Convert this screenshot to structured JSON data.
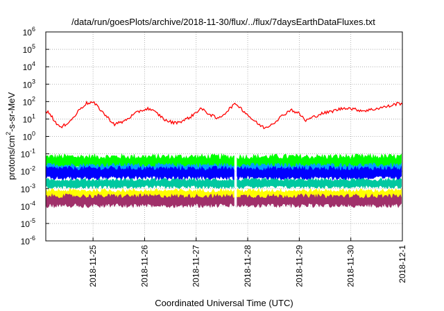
{
  "chart_data": {
    "type": "line",
    "title": "/data/run/goesPlots/archive/2018-11-30/flux/../flux/7daysEarthDataFluxes.txt",
    "xlabel": "Coordinated Universal Time (UTC)",
    "ylabel": {
      "prefix": "protons/cm",
      "sup": "2",
      "suffix": "-s-sr-MeV"
    },
    "yscale": "log",
    "ylim": [
      1e-06,
      1000000.0
    ],
    "xlim": [
      "2018-11-24 02:00",
      "2018-12-01 00:00"
    ],
    "grid": true,
    "ytick_exponents": [
      -6,
      -5,
      -4,
      -3,
      -2,
      -1,
      0,
      1,
      2,
      3,
      4,
      5,
      6
    ],
    "ytick_base": "10",
    "xticks": [
      "2018-11-25",
      "2018-11-26",
      "2018-11-27",
      "2018-11-28",
      "2018-11-29",
      "2018-11-30",
      "2018-12-1"
    ],
    "data_gap": [
      "2018-11-27 18:00",
      "2018-11-27 19:00"
    ],
    "series": [
      {
        "color": "#ff0000",
        "kind": "line",
        "points": [
          [
            "2018-11-24 02:00",
            30
          ],
          [
            "2018-11-24 04:00",
            20
          ],
          [
            "2018-11-24 06:00",
            8
          ],
          [
            "2018-11-24 09:00",
            3
          ],
          [
            "2018-11-24 12:00",
            6
          ],
          [
            "2018-11-24 15:00",
            12
          ],
          [
            "2018-11-24 18:00",
            40
          ],
          [
            "2018-11-24 21:00",
            80
          ],
          [
            "2018-11-25 00:00",
            90
          ],
          [
            "2018-11-25 03:00",
            40
          ],
          [
            "2018-11-25 06:00",
            15
          ],
          [
            "2018-11-25 10:00",
            5
          ],
          [
            "2018-11-25 14:00",
            7
          ],
          [
            "2018-11-25 18:00",
            15
          ],
          [
            "2018-11-25 22:00",
            30
          ],
          [
            "2018-11-26 02:00",
            40
          ],
          [
            "2018-11-26 06:00",
            20
          ],
          [
            "2018-11-26 10:00",
            8
          ],
          [
            "2018-11-26 14:00",
            6
          ],
          [
            "2018-11-26 18:00",
            8
          ],
          [
            "2018-11-26 22:00",
            15
          ],
          [
            "2018-11-27 02:00",
            40
          ],
          [
            "2018-11-27 06:00",
            20
          ],
          [
            "2018-11-27 10:00",
            10
          ],
          [
            "2018-11-27 14:00",
            25
          ],
          [
            "2018-11-27 17:00",
            60
          ],
          [
            "2018-11-27 19:00",
            70
          ],
          [
            "2018-11-27 22:00",
            30
          ],
          [
            "2018-11-28 02:00",
            10
          ],
          [
            "2018-11-28 05:00",
            5
          ],
          [
            "2018-11-28 08:00",
            3
          ],
          [
            "2018-11-28 12:00",
            6
          ],
          [
            "2018-11-28 16:00",
            15
          ],
          [
            "2018-11-28 20:00",
            35
          ],
          [
            "2018-11-29 00:00",
            20
          ],
          [
            "2018-11-29 03:00",
            8
          ],
          [
            "2018-11-29 06:00",
            12
          ],
          [
            "2018-11-29 10:00",
            20
          ],
          [
            "2018-11-29 14:00",
            25
          ],
          [
            "2018-11-29 18:00",
            35
          ],
          [
            "2018-11-29 22:00",
            45
          ],
          [
            "2018-11-30 02:00",
            35
          ],
          [
            "2018-11-30 06:00",
            30
          ],
          [
            "2018-11-30 10:00",
            35
          ],
          [
            "2018-11-30 14:00",
            45
          ],
          [
            "2018-11-30 18:00",
            55
          ],
          [
            "2018-11-30 22:00",
            80
          ],
          [
            "2018-12-01 00:00",
            70
          ]
        ]
      },
      {
        "color": "#00ff00",
        "kind": "band",
        "range": [
          0.01,
          0.1
        ]
      },
      {
        "color": "#00a0ff",
        "kind": "band",
        "range": [
          0.005,
          0.03
        ]
      },
      {
        "color": "#0000ff",
        "kind": "band",
        "range": [
          0.003,
          0.02
        ]
      },
      {
        "color": "#00c8a0",
        "kind": "band",
        "range": [
          0.001,
          0.004
        ]
      },
      {
        "color": "#ffff00",
        "kind": "band",
        "range": [
          0.0002,
          0.001
        ]
      },
      {
        "color": "#a0306a",
        "kind": "band",
        "range": [
          8e-05,
          0.0005
        ]
      }
    ]
  }
}
